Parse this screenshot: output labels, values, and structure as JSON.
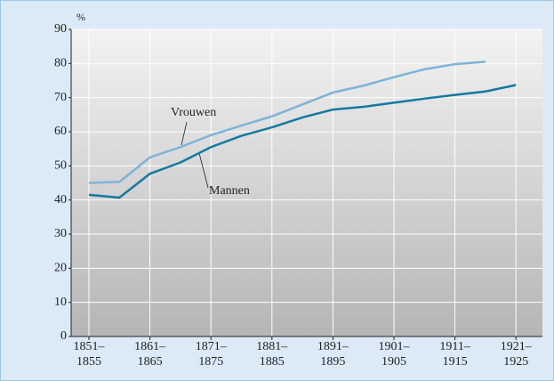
{
  "chart_data": {
    "type": "line",
    "y_unit": "%",
    "categories": [
      "1851–\n1855",
      null,
      "1861–\n1865",
      null,
      "1871–\n1875",
      null,
      "1881–\n1885",
      null,
      "1891–\n1895",
      null,
      "1901–\n1905",
      null,
      "1911–\n1915",
      null,
      "1921–\n1925"
    ],
    "series": [
      {
        "name": "Vrouwen",
        "color": "#7db4d6",
        "values": [
          45,
          45.3,
          52.5,
          55.5,
          59,
          61.8,
          64.5,
          68,
          71.5,
          73.5,
          76,
          78.3,
          79.8,
          80.5,
          null
        ]
      },
      {
        "name": "Mannen",
        "color": "#15799f",
        "values": [
          41.5,
          40.7,
          47.7,
          51,
          55.5,
          58.8,
          61.3,
          64.2,
          66.5,
          67.3,
          68.5,
          69.7,
          70.8,
          71.8,
          73.7
        ]
      }
    ],
    "ylim": [
      0,
      90
    ],
    "yticks": [
      0,
      10,
      20,
      30,
      40,
      50,
      60,
      70,
      80,
      90
    ],
    "grid": true
  }
}
